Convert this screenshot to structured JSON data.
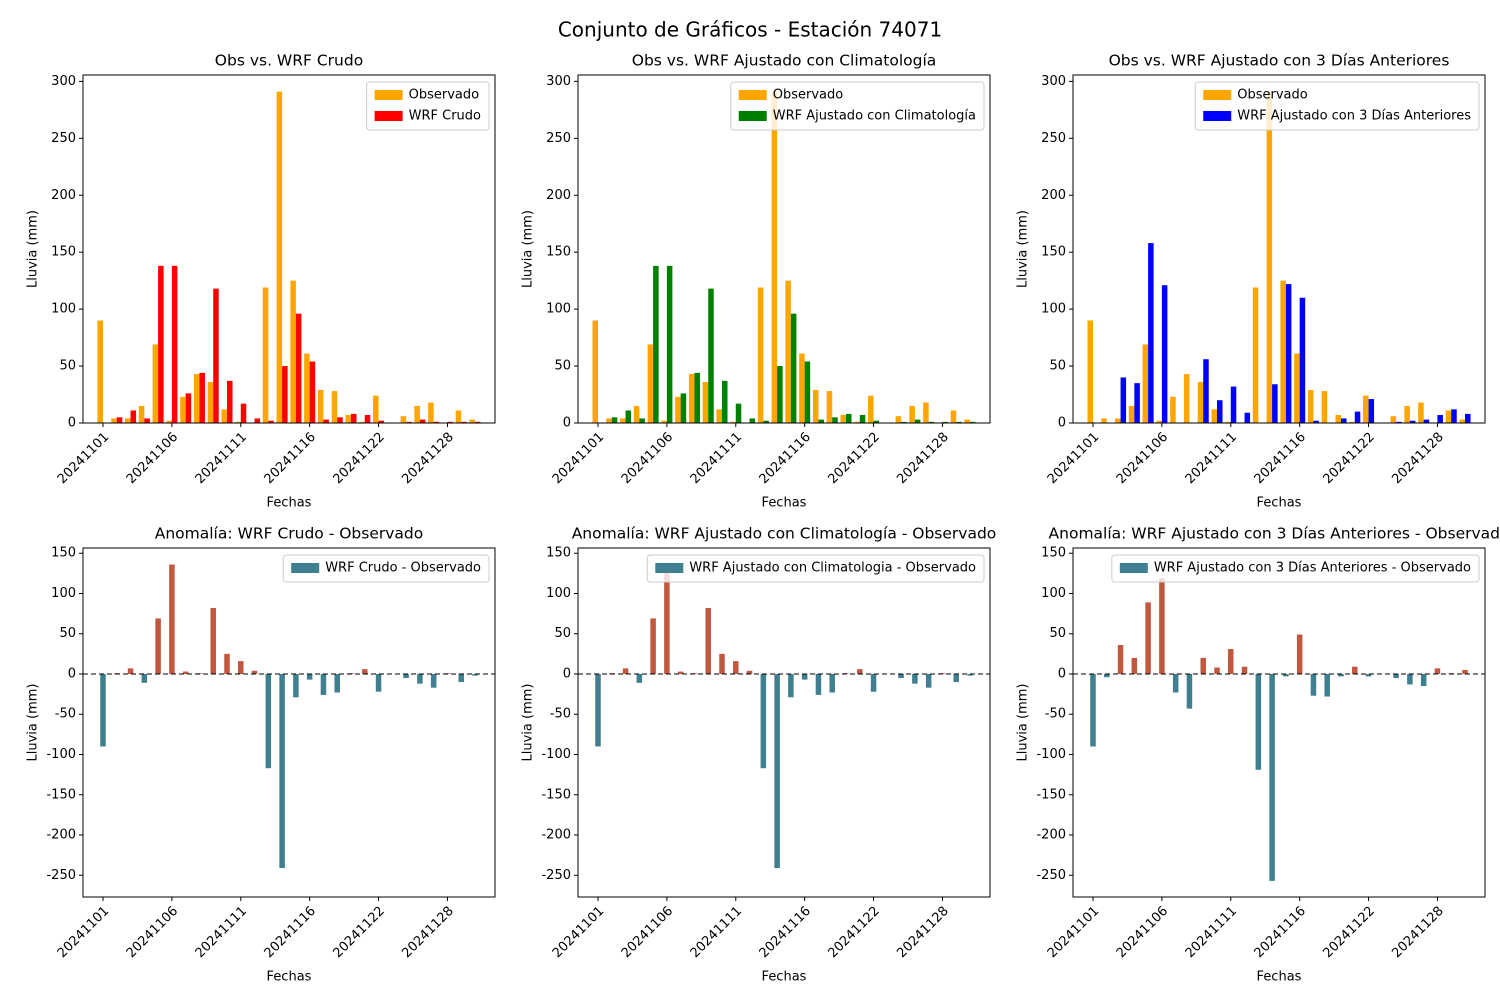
{
  "title": "Conjunto de Gráficos - Estación 74071",
  "chart_data": [
    {
      "type": "bar",
      "title": "Obs vs. WRF Crudo",
      "xlabel": "Fechas",
      "ylabel": "Lluvia (mm)",
      "categories": [
        "20241101",
        null,
        null,
        null,
        null,
        "20241106",
        null,
        null,
        null,
        null,
        "20241111",
        null,
        null,
        null,
        null,
        "20241116",
        null,
        null,
        null,
        null,
        "20241122",
        null,
        null,
        null,
        null,
        "20241128",
        null,
        null
      ],
      "series": [
        {
          "name": "Observado",
          "color": "#ffa500",
          "values": [
            90,
            4,
            4,
            15,
            69,
            2,
            23,
            43,
            36,
            12,
            1,
            0,
            119,
            291,
            125,
            61,
            29,
            28,
            7,
            1,
            24,
            0,
            6,
            15,
            18,
            0,
            11,
            3
          ]
        },
        {
          "name": "WRF Crudo",
          "color": "#ff0000",
          "values": [
            0,
            5,
            11,
            4,
            138,
            138,
            26,
            44,
            118,
            37,
            17,
            4,
            2,
            50,
            96,
            54,
            3,
            5,
            8,
            7,
            2,
            0,
            1,
            3,
            1,
            1,
            1,
            1
          ]
        }
      ],
      "ylim": [
        0,
        305.6
      ],
      "yticks": [
        0,
        50,
        100,
        150,
        200,
        250,
        300
      ],
      "legend": "upper right"
    },
    {
      "type": "bar",
      "title": "Obs vs. WRF Ajustado con Climatología",
      "xlabel": "Fechas",
      "ylabel": "Lluvia (mm)",
      "categories": [
        "20241101",
        null,
        null,
        null,
        null,
        "20241106",
        null,
        null,
        null,
        null,
        "20241111",
        null,
        null,
        null,
        null,
        "20241116",
        null,
        null,
        null,
        null,
        "20241122",
        null,
        null,
        null,
        null,
        "20241128",
        null,
        null
      ],
      "series": [
        {
          "name": "Observado",
          "color": "#ffa500",
          "values": [
            90,
            4,
            4,
            15,
            69,
            2,
            23,
            43,
            36,
            12,
            1,
            0,
            119,
            291,
            125,
            61,
            29,
            28,
            7,
            1,
            24,
            0,
            6,
            15,
            18,
            0,
            11,
            3
          ]
        },
        {
          "name": "WRF Ajustado con Climatología",
          "color": "#008000",
          "values": [
            0,
            5,
            11,
            4,
            138,
            138,
            26,
            44,
            118,
            37,
            17,
            4,
            2,
            50,
            96,
            54,
            3,
            5,
            8,
            7,
            2,
            0,
            1,
            3,
            1,
            1,
            1,
            1
          ]
        }
      ],
      "ylim": [
        0,
        305.6
      ],
      "yticks": [
        0,
        50,
        100,
        150,
        200,
        250,
        300
      ],
      "legend": "upper right"
    },
    {
      "type": "bar",
      "title": "Obs vs. WRF Ajustado con 3 Días Anteriores",
      "xlabel": "Fechas",
      "ylabel": "Lluvia (mm)",
      "categories": [
        "20241101",
        null,
        null,
        null,
        null,
        "20241106",
        null,
        null,
        null,
        null,
        "20241111",
        null,
        null,
        null,
        null,
        "20241116",
        null,
        null,
        null,
        null,
        "20241122",
        null,
        null,
        null,
        null,
        "20241128",
        null,
        null
      ],
      "series": [
        {
          "name": "Observado",
          "color": "#ffa500",
          "values": [
            90,
            4,
            4,
            15,
            69,
            2,
            23,
            43,
            36,
            12,
            1,
            0,
            119,
            291,
            125,
            61,
            29,
            28,
            7,
            1,
            24,
            0,
            6,
            15,
            18,
            0,
            11,
            3
          ]
        },
        {
          "name": "WRF Ajustado con 3 Días Anteriores",
          "color": "#0000ff",
          "values": [
            0,
            0,
            40,
            35,
            158,
            121,
            0,
            0,
            56,
            20,
            32,
            9,
            0,
            34,
            122,
            110,
            2,
            0,
            4,
            10,
            21,
            0,
            1,
            2,
            3,
            7,
            12,
            8
          ]
        }
      ],
      "ylim": [
        0,
        305.6
      ],
      "yticks": [
        0,
        50,
        100,
        150,
        200,
        250,
        300
      ],
      "legend": "upper right"
    },
    {
      "type": "anomaly",
      "title": "Anomalía: WRF Crudo - Observado",
      "xlabel": "Fechas",
      "ylabel": "Lluvia (mm)",
      "categories": [
        "20241101",
        null,
        null,
        null,
        null,
        "20241106",
        null,
        null,
        null,
        null,
        "20241111",
        null,
        null,
        null,
        null,
        "20241116",
        null,
        null,
        null,
        null,
        "20241122",
        null,
        null,
        null,
        null,
        "20241128",
        null,
        null
      ],
      "series": [
        {
          "name": "WRF Crudo - Observado",
          "color": "#3f7f8f",
          "positive_color": "#c0583f",
          "values": [
            -90,
            1,
            7,
            -11,
            69,
            136,
            3,
            1,
            82,
            25,
            16,
            4,
            -117,
            -241,
            -29,
            -7,
            -26,
            -23,
            1,
            6,
            -22,
            0,
            -5,
            -12,
            -17,
            1,
            -10,
            -2
          ]
        }
      ],
      "ylim": [
        -277,
        156.5
      ],
      "yticks": [
        -250,
        -200,
        -150,
        -100,
        -50,
        0,
        50,
        100,
        150
      ],
      "zero_line": true,
      "legend": "upper right"
    },
    {
      "type": "anomaly",
      "title": "Anomalía: WRF Ajustado con Climatología - Observado",
      "xlabel": "Fechas",
      "ylabel": "Lluvia (mm)",
      "categories": [
        "20241101",
        null,
        null,
        null,
        null,
        "20241106",
        null,
        null,
        null,
        null,
        "20241111",
        null,
        null,
        null,
        null,
        "20241116",
        null,
        null,
        null,
        null,
        "20241122",
        null,
        null,
        null,
        null,
        "20241128",
        null,
        null
      ],
      "series": [
        {
          "name": "WRF Ajustado con Climatologia - Observado",
          "color": "#3f7f8f",
          "positive_color": "#c0583f",
          "values": [
            -90,
            1,
            7,
            -11,
            69,
            136,
            3,
            1,
            82,
            25,
            16,
            4,
            -117,
            -241,
            -29,
            -7,
            -26,
            -23,
            1,
            6,
            -22,
            0,
            -5,
            -12,
            -17,
            1,
            -10,
            -2
          ]
        }
      ],
      "ylim": [
        -277,
        156.5
      ],
      "yticks": [
        -250,
        -200,
        -150,
        -100,
        -50,
        0,
        50,
        100,
        150
      ],
      "zero_line": true,
      "legend": "upper right"
    },
    {
      "type": "anomaly",
      "title": "Anomalía: WRF Ajustado con 3 Días Anteriores - Observado",
      "xlabel": "Fechas",
      "ylabel": "Lluvia (mm)",
      "categories": [
        "20241101",
        null,
        null,
        null,
        null,
        "20241106",
        null,
        null,
        null,
        null,
        "20241111",
        null,
        null,
        null,
        null,
        "20241116",
        null,
        null,
        null,
        null,
        "20241122",
        null,
        null,
        null,
        null,
        "20241128",
        null,
        null
      ],
      "series": [
        {
          "name": "WRF Ajustado con 3 Días Anteriores - Observado",
          "color": "#3f7f8f",
          "positive_color": "#c0583f",
          "values": [
            -90,
            -4,
            36,
            20,
            89,
            119,
            -23,
            -43,
            20,
            8,
            31,
            9,
            -119,
            -257,
            -3,
            49,
            -27,
            -28,
            -3,
            9,
            -3,
            0,
            -5,
            -13,
            -15,
            7,
            1,
            5
          ]
        }
      ],
      "ylim": [
        -277,
        156.5
      ],
      "yticks": [
        -250,
        -200,
        -150,
        -100,
        -50,
        0,
        50,
        100,
        150
      ],
      "zero_line": true,
      "legend": "upper right"
    }
  ]
}
